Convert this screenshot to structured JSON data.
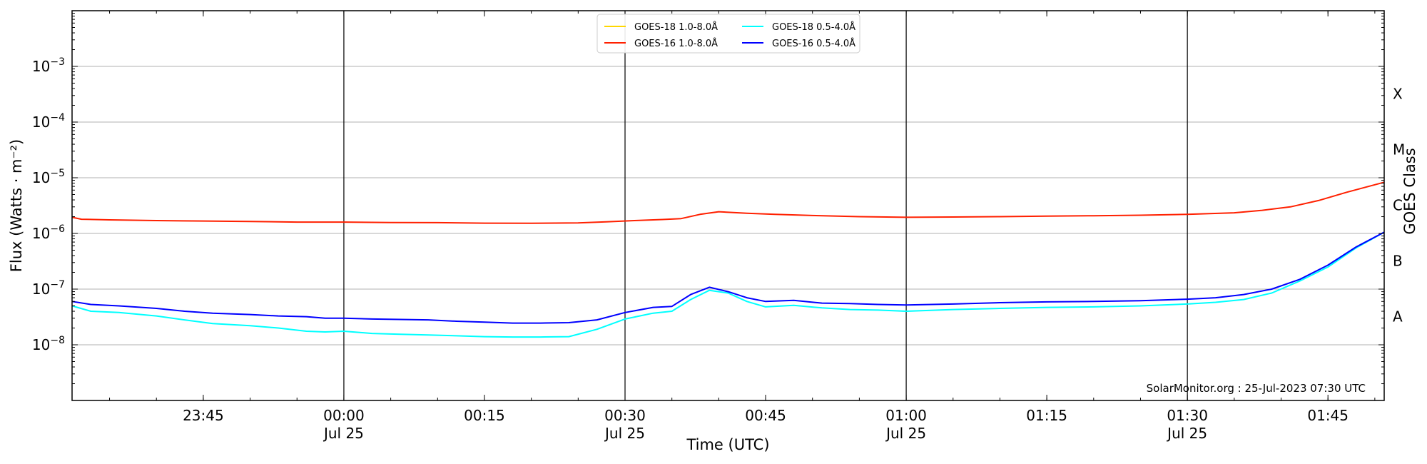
{
  "chart_data": {
    "type": "line",
    "title": "",
    "xlabel": "Time (UTC)",
    "ylabel": "Flux (Watts · m⁻²)",
    "ylabel_right": "GOES Class",
    "y_scale": "log",
    "ylim": [
      1e-09,
      0.01
    ],
    "xlim": [
      "2023-07-24 23:31",
      "2023-07-25 01:51"
    ],
    "grid": "horizontal at decades",
    "legend_position": "top-center",
    "credit": "SolarMonitor.org : 25-Jul-2023 07:30 UTC",
    "y_ticks": [
      {
        "value": 1e-08,
        "base": "10",
        "exp": "−8"
      },
      {
        "value": 1e-07,
        "base": "10",
        "exp": "−7"
      },
      {
        "value": 1e-06,
        "base": "10",
        "exp": "−6"
      },
      {
        "value": 1e-05,
        "base": "10",
        "exp": "−5"
      },
      {
        "value": 0.0001,
        "base": "10",
        "exp": "−4"
      },
      {
        "value": 0.001,
        "base": "10",
        "exp": "−3"
      }
    ],
    "x_ticks": [
      {
        "time": "2023-07-24 23:45",
        "label": "23:45",
        "sublabel": ""
      },
      {
        "time": "2023-07-25 00:00",
        "label": "00:00",
        "sublabel": "Jul 25"
      },
      {
        "time": "2023-07-25 00:15",
        "label": "00:15",
        "sublabel": ""
      },
      {
        "time": "2023-07-25 00:30",
        "label": "00:30",
        "sublabel": "Jul 25"
      },
      {
        "time": "2023-07-25 00:45",
        "label": "00:45",
        "sublabel": ""
      },
      {
        "time": "2023-07-25 01:00",
        "label": "01:00",
        "sublabel": "Jul 25"
      },
      {
        "time": "2023-07-25 01:15",
        "label": "01:15",
        "sublabel": ""
      },
      {
        "time": "2023-07-25 01:30",
        "label": "01:30",
        "sublabel": "Jul 25"
      },
      {
        "time": "2023-07-25 01:45",
        "label": "01:45",
        "sublabel": ""
      }
    ],
    "vertical_lines": [
      "2023-07-25 00:00",
      "2023-07-25 00:30",
      "2023-07-25 01:00",
      "2023-07-25 01:30"
    ],
    "goes_classes": [
      {
        "label": "A",
        "flux": 3.2e-08
      },
      {
        "label": "B",
        "flux": 3.2e-07
      },
      {
        "label": "C",
        "flux": 3.2e-06
      },
      {
        "label": "M",
        "flux": 3.2e-05
      },
      {
        "label": "X",
        "flux": 0.00032
      }
    ],
    "series": [
      {
        "name": "GOES-18 1.0-8.0Å",
        "color": "#ffd700",
        "x": [],
        "values": []
      },
      {
        "name": "GOES-18 0.5-4.0Å",
        "color": "#00ffff",
        "x": [
          "2023-07-24 23:31",
          "2023-07-24 23:33",
          "2023-07-24 23:36",
          "2023-07-24 23:40",
          "2023-07-24 23:43",
          "2023-07-24 23:46",
          "2023-07-24 23:50",
          "2023-07-24 23:53",
          "2023-07-24 23:56",
          "2023-07-24 23:58",
          "2023-07-25 00:00",
          "2023-07-25 00:03",
          "2023-07-25 00:06",
          "2023-07-25 00:09",
          "2023-07-25 00:12",
          "2023-07-25 00:15",
          "2023-07-25 00:18",
          "2023-07-25 00:21",
          "2023-07-25 00:24",
          "2023-07-25 00:27",
          "2023-07-25 00:30",
          "2023-07-25 00:33",
          "2023-07-25 00:35",
          "2023-07-25 00:37",
          "2023-07-25 00:39",
          "2023-07-25 00:41",
          "2023-07-25 00:43",
          "2023-07-25 00:45",
          "2023-07-25 00:48",
          "2023-07-25 00:51",
          "2023-07-25 00:54",
          "2023-07-25 00:57",
          "2023-07-25 01:00",
          "2023-07-25 01:05",
          "2023-07-25 01:10",
          "2023-07-25 01:15",
          "2023-07-25 01:20",
          "2023-07-25 01:25",
          "2023-07-25 01:30",
          "2023-07-25 01:33",
          "2023-07-25 01:36",
          "2023-07-25 01:39",
          "2023-07-25 01:42",
          "2023-07-25 01:45",
          "2023-07-25 01:48",
          "2023-07-25 01:51"
        ],
        "values": [
          5e-08,
          4e-08,
          3.8e-08,
          3.3e-08,
          2.8e-08,
          2.4e-08,
          2.2e-08,
          2e-08,
          1.75e-08,
          1.7e-08,
          1.75e-08,
          1.6e-08,
          1.55e-08,
          1.5e-08,
          1.45e-08,
          1.4e-08,
          1.38e-08,
          1.38e-08,
          1.4e-08,
          1.9e-08,
          2.9e-08,
          3.7e-08,
          4e-08,
          6.5e-08,
          9.5e-08,
          8.5e-08,
          6e-08,
          4.8e-08,
          5.1e-08,
          4.6e-08,
          4.3e-08,
          4.2e-08,
          4e-08,
          4.3e-08,
          4.5e-08,
          4.7e-08,
          4.8e-08,
          5e-08,
          5.4e-08,
          5.8e-08,
          6.5e-08,
          8.5e-08,
          1.4e-07,
          2.5e-07,
          5.5e-07,
          1.05e-06
        ]
      },
      {
        "name": "GOES-16 1.0-8.0Å",
        "color": "#ff2000",
        "x": [
          "2023-07-24 23:31",
          "2023-07-24 23:32",
          "2023-07-24 23:35",
          "2023-07-24 23:40",
          "2023-07-24 23:45",
          "2023-07-24 23:50",
          "2023-07-24 23:55",
          "2023-07-25 00:00",
          "2023-07-25 00:05",
          "2023-07-25 00:10",
          "2023-07-25 00:15",
          "2023-07-25 00:20",
          "2023-07-25 00:25",
          "2023-07-25 00:28",
          "2023-07-25 00:31",
          "2023-07-25 00:34",
          "2023-07-25 00:36",
          "2023-07-25 00:38",
          "2023-07-25 00:40",
          "2023-07-25 00:43",
          "2023-07-25 00:46",
          "2023-07-25 00:50",
          "2023-07-25 00:55",
          "2023-07-25 01:00",
          "2023-07-25 01:05",
          "2023-07-25 01:10",
          "2023-07-25 01:15",
          "2023-07-25 01:20",
          "2023-07-25 01:25",
          "2023-07-25 01:30",
          "2023-07-25 01:35",
          "2023-07-25 01:38",
          "2023-07-25 01:41",
          "2023-07-25 01:44",
          "2023-07-25 01:47",
          "2023-07-25 01:51"
        ],
        "values": [
          1.95e-06,
          1.8e-06,
          1.75e-06,
          1.7e-06,
          1.67e-06,
          1.64e-06,
          1.6e-06,
          1.6e-06,
          1.57e-06,
          1.56e-06,
          1.53e-06,
          1.52e-06,
          1.55e-06,
          1.62e-06,
          1.7e-06,
          1.78e-06,
          1.85e-06,
          2.2e-06,
          2.45e-06,
          2.3e-06,
          2.2e-06,
          2.1e-06,
          2e-06,
          1.95e-06,
          1.97e-06,
          2e-06,
          2.05e-06,
          2.08e-06,
          2.12e-06,
          2.2e-06,
          2.35e-06,
          2.6e-06,
          3e-06,
          3.9e-06,
          5.5e-06,
          8.3e-06
        ]
      },
      {
        "name": "GOES-16 0.5-4.0Å",
        "color": "#0000ff",
        "x": [
          "2023-07-24 23:31",
          "2023-07-24 23:33",
          "2023-07-24 23:36",
          "2023-07-24 23:40",
          "2023-07-24 23:43",
          "2023-07-24 23:46",
          "2023-07-24 23:50",
          "2023-07-24 23:53",
          "2023-07-24 23:56",
          "2023-07-24 23:58",
          "2023-07-25 00:00",
          "2023-07-25 00:03",
          "2023-07-25 00:06",
          "2023-07-25 00:09",
          "2023-07-25 00:12",
          "2023-07-25 00:15",
          "2023-07-25 00:18",
          "2023-07-25 00:21",
          "2023-07-25 00:24",
          "2023-07-25 00:27",
          "2023-07-25 00:30",
          "2023-07-25 00:33",
          "2023-07-25 00:35",
          "2023-07-25 00:37",
          "2023-07-25 00:39",
          "2023-07-25 00:41",
          "2023-07-25 00:43",
          "2023-07-25 00:45",
          "2023-07-25 00:48",
          "2023-07-25 00:51",
          "2023-07-25 00:54",
          "2023-07-25 00:57",
          "2023-07-25 01:00",
          "2023-07-25 01:05",
          "2023-07-25 01:10",
          "2023-07-25 01:15",
          "2023-07-25 01:20",
          "2023-07-25 01:25",
          "2023-07-25 01:30",
          "2023-07-25 01:33",
          "2023-07-25 01:36",
          "2023-07-25 01:39",
          "2023-07-25 01:42",
          "2023-07-25 01:45",
          "2023-07-25 01:48",
          "2023-07-25 01:51"
        ],
        "values": [
          6e-08,
          5.3e-08,
          5e-08,
          4.5e-08,
          4e-08,
          3.7e-08,
          3.5e-08,
          3.3e-08,
          3.2e-08,
          3e-08,
          3e-08,
          2.9e-08,
          2.85e-08,
          2.8e-08,
          2.65e-08,
          2.55e-08,
          2.45e-08,
          2.45e-08,
          2.5e-08,
          2.8e-08,
          3.8e-08,
          4.7e-08,
          4.9e-08,
          8e-08,
          1.08e-07,
          9e-08,
          7e-08,
          6e-08,
          6.3e-08,
          5.6e-08,
          5.5e-08,
          5.3e-08,
          5.2e-08,
          5.4e-08,
          5.7e-08,
          5.9e-08,
          6e-08,
          6.2e-08,
          6.6e-08,
          7e-08,
          8e-08,
          1e-07,
          1.5e-07,
          2.7e-07,
          5.7e-07,
          1.05e-06
        ]
      }
    ]
  }
}
